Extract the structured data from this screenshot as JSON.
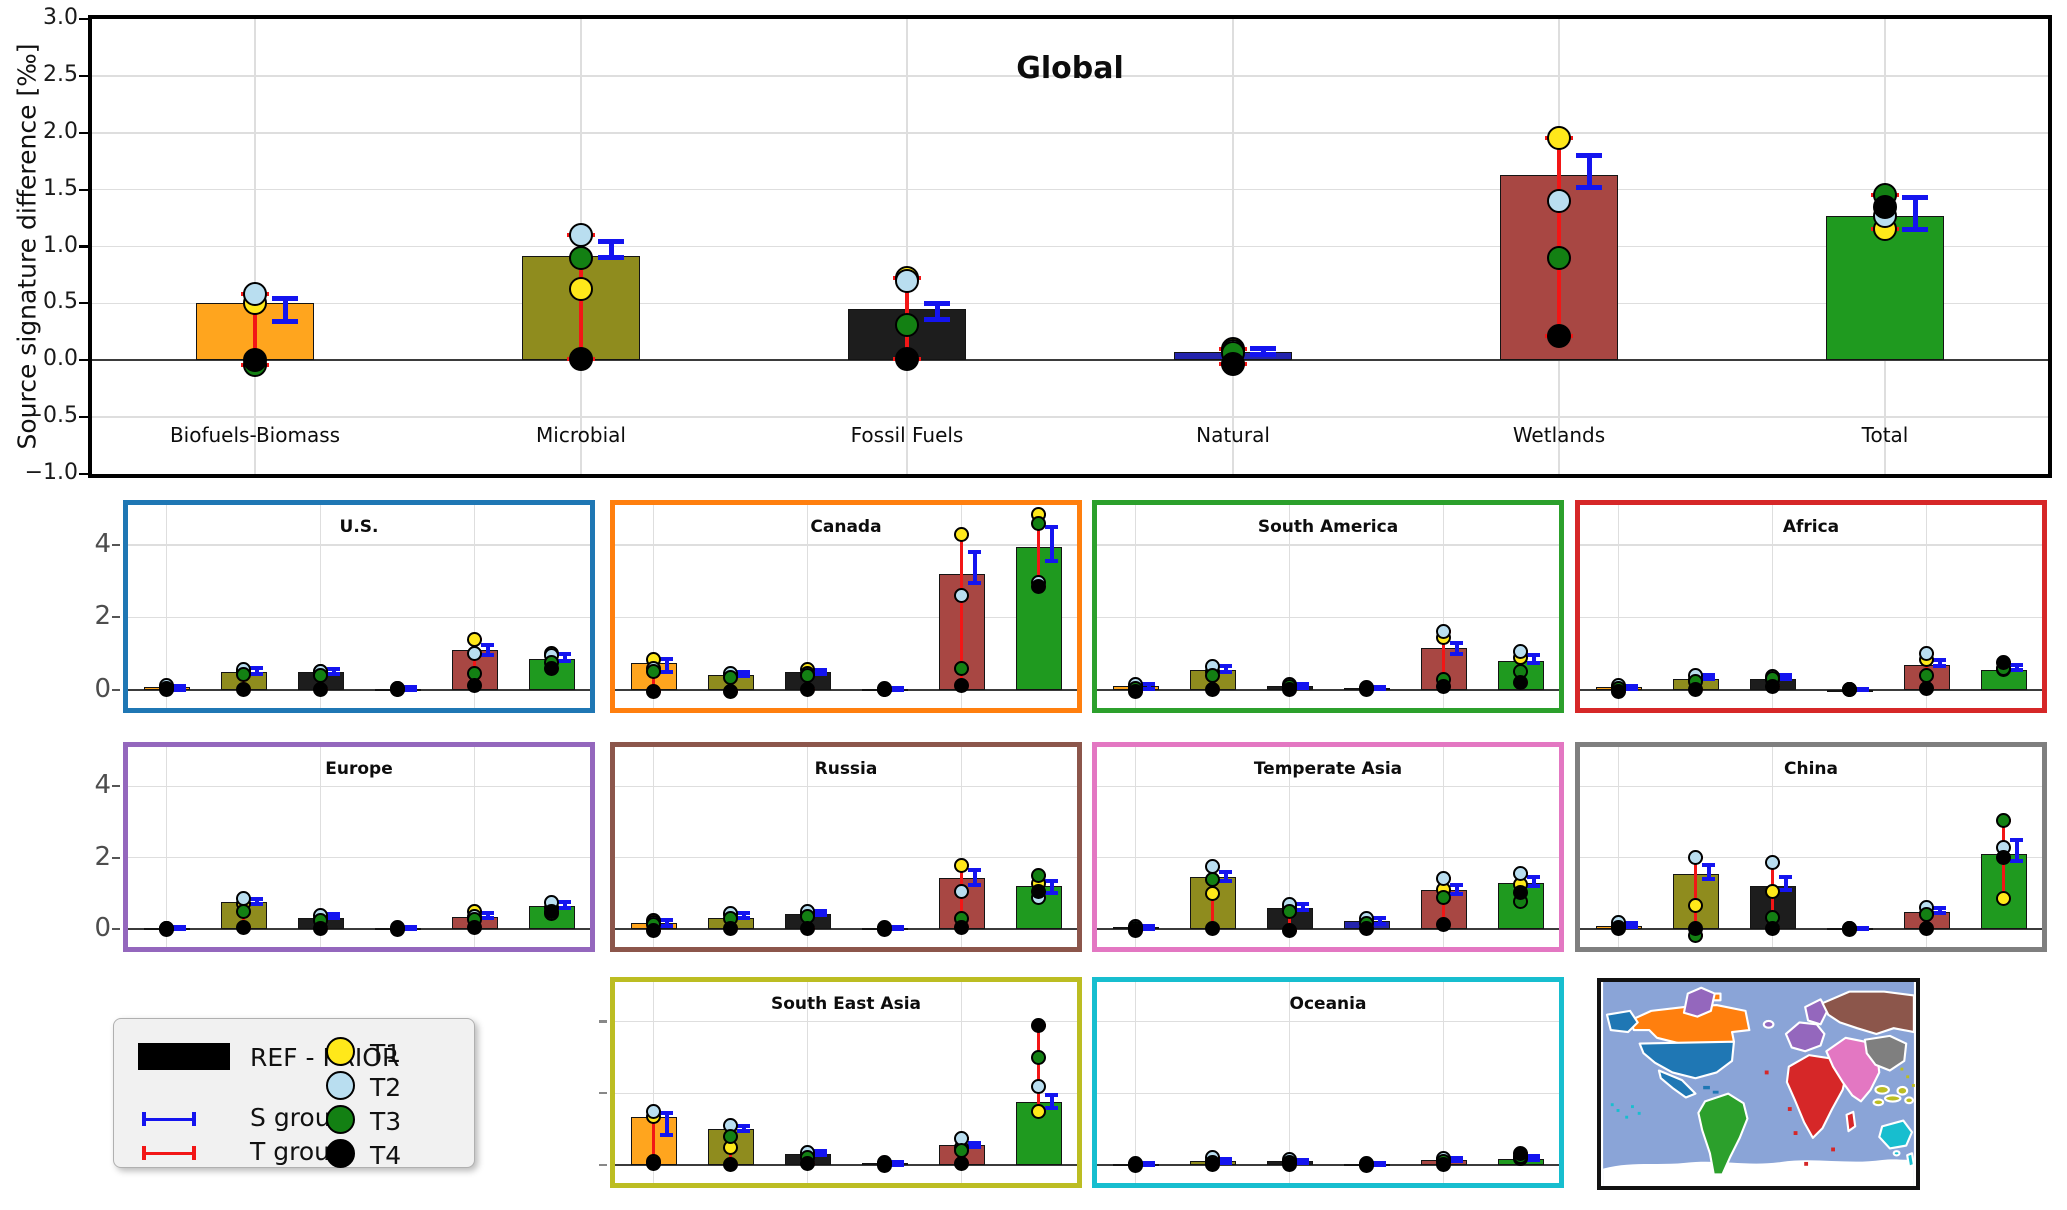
{
  "legend": {
    "ref_prior": "REF - PRIOR",
    "s_group": "S group",
    "t_group": "T group",
    "t1": "T1",
    "t2": "T2",
    "t3": "T3",
    "t4": "T4"
  },
  "chart_data": {
    "type": "bar",
    "ylabel": "Source signature difference [‰]",
    "categories": [
      "Biofuels-Biomass",
      "Microbial",
      "Fossil Fuels",
      "Natural",
      "Wetlands",
      "Total"
    ],
    "category_colors": [
      "#ffa51e",
      "#8f8c1e",
      "#1d1d1d",
      "#2424ad",
      "#a84743",
      "#1f9a1f"
    ],
    "marker_series": [
      "T1",
      "T2",
      "T3",
      "T4"
    ],
    "marker_colors": {
      "T1": "#ffe81a",
      "T2": "#b9def0",
      "T3": "#138013",
      "T4": "#000000"
    },
    "sgroup_color": "#1414ef",
    "tgroup_color": "#f21616",
    "grid": true,
    "legend_position": "bottom-left",
    "bar_format": "[bar_value, T1, T2, T3, T4, SgroupLow, SgroupHigh]",
    "global": {
      "title": "Global",
      "ylim": [
        -1.0,
        3.0
      ],
      "yticks": [
        3.0,
        2.5,
        2.0,
        1.5,
        1.0,
        0.5,
        0.0,
        -0.5,
        -1.0
      ],
      "ytick_labels": [
        "3.0",
        "2.5",
        "2.0",
        "1.5",
        "1.0",
        "0.5",
        "0.0",
        "−0.5",
        "−1.0"
      ],
      "bars": [
        [
          0.5,
          0.5,
          0.58,
          -0.04,
          0.0,
          0.34,
          0.54
        ],
        [
          0.92,
          0.63,
          1.1,
          0.9,
          0.01,
          0.9,
          1.04
        ],
        [
          0.45,
          0.72,
          0.7,
          0.31,
          0.01,
          0.36,
          0.5
        ],
        [
          0.07,
          0.1,
          0.08,
          0.06,
          -0.03,
          0.05,
          0.1
        ],
        [
          1.63,
          1.95,
          1.4,
          0.9,
          0.21,
          1.52,
          1.8
        ],
        [
          1.27,
          1.15,
          1.27,
          1.45,
          1.35,
          1.15,
          1.43
        ]
      ]
    },
    "region_ylim": [
      -0.5,
      5.1
    ],
    "region_yticks": [
      4,
      2,
      0
    ],
    "region_ytick_labels": [
      "4",
      "2",
      "0"
    ],
    "regions": [
      {
        "key": "us",
        "name": "U.S.",
        "color": "#1f77b4",
        "row": 0,
        "col": 0,
        "show_ylabels": true,
        "bars": [
          [
            0.07,
            0.08,
            0.12,
            0.03,
            0.01,
            0.01,
            0.12
          ],
          [
            0.5,
            0.5,
            0.55,
            0.42,
            0.01,
            0.45,
            0.6
          ],
          [
            0.5,
            0.5,
            0.52,
            0.4,
            0.01,
            0.45,
            0.58
          ],
          [
            0.03,
            0.03,
            0.04,
            0.02,
            0.0,
            0.0,
            0.07
          ],
          [
            1.1,
            1.38,
            1.0,
            0.45,
            0.12,
            0.95,
            1.25
          ],
          [
            0.85,
            1.0,
            0.95,
            0.75,
            0.6,
            0.8,
            1.0
          ]
        ]
      },
      {
        "key": "canada",
        "name": "Canada",
        "color": "#ff7f0e",
        "row": 0,
        "col": 1,
        "show_ylabels": false,
        "bars": [
          [
            0.75,
            0.85,
            0.6,
            0.5,
            -0.05,
            0.5,
            0.85
          ],
          [
            0.4,
            0.42,
            0.45,
            0.35,
            -0.05,
            0.38,
            0.5
          ],
          [
            0.5,
            0.55,
            0.45,
            0.4,
            0.01,
            0.45,
            0.55
          ],
          [
            0.02,
            0.02,
            0.03,
            0.01,
            0.0,
            0.0,
            0.05
          ],
          [
            3.2,
            4.3,
            2.6,
            0.6,
            0.12,
            2.95,
            3.8
          ],
          [
            3.95,
            4.85,
            2.97,
            4.6,
            2.85,
            3.55,
            4.5
          ]
        ]
      },
      {
        "key": "south_america",
        "name": "South America",
        "color": "#2ca02c",
        "row": 0,
        "col": 2,
        "show_ylabels": false,
        "bars": [
          [
            0.1,
            0.1,
            0.15,
            0.05,
            -0.05,
            0.03,
            0.15
          ],
          [
            0.55,
            0.5,
            0.65,
            0.4,
            0.01,
            0.5,
            0.65
          ],
          [
            0.12,
            0.12,
            0.15,
            0.08,
            0.01,
            0.05,
            0.16
          ],
          [
            0.05,
            0.05,
            0.06,
            0.03,
            0.0,
            0.02,
            0.09
          ],
          [
            1.15,
            1.45,
            1.6,
            0.3,
            0.1,
            1.0,
            1.3
          ],
          [
            0.8,
            0.9,
            1.05,
            0.5,
            0.2,
            0.75,
            0.95
          ]
        ]
      },
      {
        "key": "africa",
        "name": "Africa",
        "color": "#d62728",
        "row": 0,
        "col": 3,
        "show_ylabels": false,
        "bars": [
          [
            0.08,
            0.08,
            0.12,
            0.04,
            -0.04,
            0.02,
            0.12
          ],
          [
            0.3,
            0.3,
            0.4,
            0.22,
            0.01,
            0.3,
            0.42
          ],
          [
            0.3,
            0.3,
            0.38,
            0.32,
            0.1,
            0.3,
            0.42
          ],
          [
            0.01,
            0.01,
            0.02,
            0.01,
            0.0,
            0.0,
            0.03
          ],
          [
            0.7,
            0.85,
            1.0,
            0.4,
            0.05,
            0.65,
            0.82
          ],
          [
            0.55,
            0.55,
            0.6,
            0.58,
            0.75,
            0.55,
            0.7
          ]
        ]
      },
      {
        "key": "europe",
        "name": "Europe",
        "color": "#9467bd",
        "row": 1,
        "col": 0,
        "show_ylabels": true,
        "bars": [
          [
            0.02,
            0.02,
            0.03,
            0.01,
            0.0,
            0.0,
            0.05
          ],
          [
            0.75,
            0.72,
            0.85,
            0.5,
            0.05,
            0.7,
            0.85
          ],
          [
            0.3,
            0.3,
            0.38,
            0.25,
            0.02,
            0.3,
            0.42
          ],
          [
            0.03,
            0.03,
            0.04,
            0.02,
            0.0,
            0.0,
            0.06
          ],
          [
            0.33,
            0.5,
            0.35,
            0.28,
            0.05,
            0.3,
            0.45
          ],
          [
            0.65,
            0.6,
            0.75,
            0.45,
            0.5,
            0.6,
            0.75
          ]
        ]
      },
      {
        "key": "russia",
        "name": "Russia",
        "color": "#8c564b",
        "row": 1,
        "col": 1,
        "show_ylabels": false,
        "bars": [
          [
            0.18,
            0.25,
            0.2,
            0.12,
            -0.05,
            0.1,
            0.25
          ],
          [
            0.32,
            0.4,
            0.45,
            0.3,
            0.01,
            0.3,
            0.45
          ],
          [
            0.42,
            0.45,
            0.5,
            0.35,
            0.01,
            0.4,
            0.52
          ],
          [
            0.03,
            0.03,
            0.04,
            0.02,
            0.0,
            0.0,
            0.06
          ],
          [
            1.42,
            1.78,
            1.05,
            0.3,
            0.05,
            1.25,
            1.65
          ],
          [
            1.2,
            1.28,
            0.9,
            1.5,
            1.05,
            1.0,
            1.35
          ]
        ]
      },
      {
        "key": "temperate_asia",
        "name": "Temperate Asia",
        "color": "#e377c2",
        "row": 1,
        "col": 2,
        "show_ylabels": false,
        "bars": [
          [
            0.05,
            0.05,
            0.08,
            0.03,
            -0.03,
            0.0,
            0.1
          ],
          [
            1.45,
            1.0,
            1.75,
            1.4,
            0.02,
            1.35,
            1.6
          ],
          [
            0.6,
            0.6,
            0.7,
            0.5,
            -0.05,
            0.55,
            0.7
          ],
          [
            0.22,
            0.22,
            0.3,
            0.15,
            0.01,
            0.15,
            0.3
          ],
          [
            1.1,
            1.1,
            1.42,
            0.9,
            0.12,
            0.98,
            1.25
          ],
          [
            1.3,
            1.25,
            1.55,
            0.78,
            1.02,
            1.22,
            1.45
          ]
        ]
      },
      {
        "key": "china",
        "name": "China",
        "color": "#7f7f7f",
        "row": 1,
        "col": 3,
        "show_ylabels": false,
        "bars": [
          [
            0.1,
            0.1,
            0.18,
            0.05,
            0.01,
            0.05,
            0.18
          ],
          [
            1.55,
            0.65,
            2.0,
            -0.18,
            0.01,
            1.4,
            1.8
          ],
          [
            1.2,
            1.05,
            1.88,
            0.32,
            0.01,
            1.1,
            1.45
          ],
          [
            0.02,
            0.02,
            0.03,
            0.01,
            0.0,
            0.0,
            0.04
          ],
          [
            0.47,
            0.45,
            0.6,
            0.4,
            0.01,
            0.45,
            0.6
          ],
          [
            2.1,
            0.85,
            2.3,
            3.05,
            2.0,
            1.9,
            2.5
          ]
        ]
      },
      {
        "key": "south_east_asia",
        "name": "South East Asia",
        "color": "#bcbd22",
        "row": 2,
        "col": 1,
        "show_ylabels": false,
        "bars": [
          [
            1.35,
            1.35,
            1.5,
            0.1,
            0.05,
            0.85,
            1.45
          ],
          [
            1.0,
            0.5,
            1.1,
            0.8,
            0.01,
            0.95,
            1.1
          ],
          [
            0.3,
            0.3,
            0.35,
            0.2,
            0.05,
            0.28,
            0.38
          ],
          [
            0.05,
            0.05,
            0.06,
            0.03,
            0.0,
            0.0,
            0.08
          ],
          [
            0.55,
            0.5,
            0.75,
            0.4,
            0.05,
            0.5,
            0.62
          ],
          [
            1.75,
            1.5,
            2.2,
            3.0,
            3.9,
            1.6,
            1.95
          ]
        ]
      },
      {
        "key": "oceania",
        "name": "Oceania",
        "color": "#17becf",
        "row": 2,
        "col": 2,
        "show_ylabels": false,
        "bars": [
          [
            0.02,
            0.02,
            0.03,
            0.01,
            0.0,
            0.0,
            0.05
          ],
          [
            0.12,
            0.12,
            0.2,
            0.08,
            0.01,
            0.05,
            0.18
          ],
          [
            0.1,
            0.1,
            0.15,
            0.06,
            0.02,
            0.05,
            0.15
          ],
          [
            0.02,
            0.02,
            0.03,
            0.01,
            0.0,
            0.0,
            0.05
          ],
          [
            0.15,
            0.15,
            0.18,
            0.1,
            0.02,
            0.1,
            0.2
          ],
          [
            0.18,
            0.18,
            0.2,
            0.25,
            0.32,
            0.15,
            0.25
          ]
        ]
      }
    ],
    "map": {
      "ocean": "#8aa4d7",
      "ice": "#ffffff"
    }
  }
}
